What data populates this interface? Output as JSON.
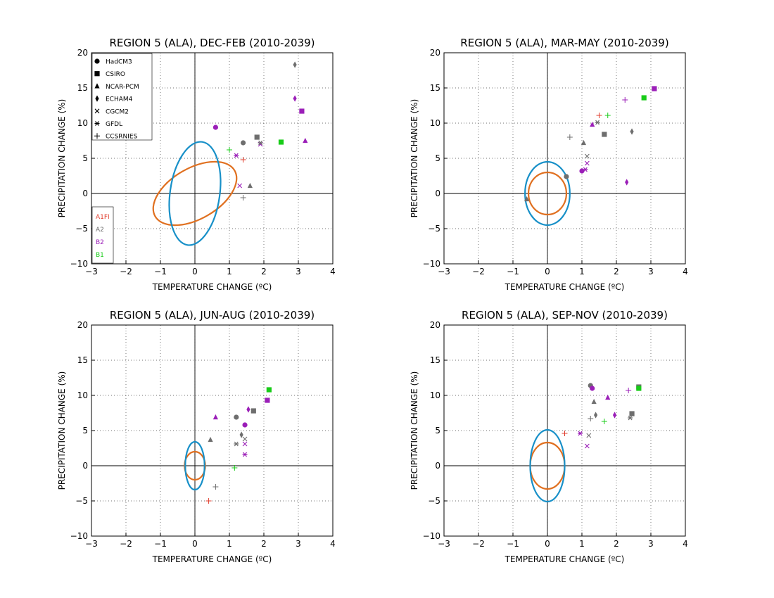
{
  "colors": {
    "A1FI": "#e03c2c",
    "A2": "#6e6e6e",
    "B2": "#9b1fb8",
    "B1": "#18cc18",
    "ellipse_inner": "#e07020",
    "ellipse_outer": "#1890c8"
  },
  "legend_models": [
    {
      "label": "HadCM3",
      "icon": "circle-marker"
    },
    {
      "label": "CSIRO",
      "icon": "square-marker"
    },
    {
      "label": "NCAR-PCM",
      "icon": "triangle-marker"
    },
    {
      "label": "ECHAM4",
      "icon": "diamond-marker"
    },
    {
      "label": "CGCM2",
      "icon": "x-marker"
    },
    {
      "label": "GFDL",
      "icon": "asterisk-marker"
    },
    {
      "label": "CCSRNIES",
      "icon": "plus-marker"
    }
  ],
  "legend_scenarios": [
    "A1FI",
    "A2",
    "B2",
    "B1"
  ],
  "chart_data": [
    {
      "type": "scatter",
      "title": "REGION 5 (ALA), DEC-FEB (2010-2039)",
      "xlabel": "TEMPERATURE CHANGE (ºC)",
      "ylabel": "PRECIPITATION CHANGE (%)",
      "xlim": [
        -3,
        4
      ],
      "ylim": [
        -10,
        20
      ],
      "xticks": [
        "−3",
        "−2",
        "−1",
        "0",
        "1",
        "2",
        "3",
        "4"
      ],
      "yticks": [
        "−10",
        "−5",
        "0",
        "5",
        "10",
        "15",
        "20"
      ],
      "grid": true,
      "legend": "top-left",
      "ellipses": [
        {
          "name": "inner",
          "cx": 0.0,
          "cy": 0.0,
          "rx": 1.0,
          "ry": 3.6
        },
        {
          "name": "outer",
          "cx": 0.0,
          "cy": 0.0,
          "rx": 0.9,
          "ry": 7.3,
          "tilt": true
        }
      ],
      "points": [
        {
          "model": "HadCM3",
          "scenario": "B2",
          "x": 0.6,
          "y": 9.4
        },
        {
          "model": "HadCM3",
          "scenario": "A2",
          "x": 1.4,
          "y": 7.2
        },
        {
          "model": "CSIRO",
          "scenario": "A2",
          "x": 1.8,
          "y": 8.0
        },
        {
          "model": "CSIRO",
          "scenario": "B1",
          "x": 2.5,
          "y": 7.3
        },
        {
          "model": "CSIRO",
          "scenario": "B2",
          "x": 3.1,
          "y": 11.7
        },
        {
          "model": "NCAR-PCM",
          "scenario": "B2",
          "x": 3.2,
          "y": 7.5
        },
        {
          "model": "NCAR-PCM",
          "scenario": "A2",
          "x": 1.6,
          "y": 1.1
        },
        {
          "model": "ECHAM4",
          "scenario": "A2",
          "x": 2.9,
          "y": 18.3
        },
        {
          "model": "ECHAM4",
          "scenario": "B2",
          "x": 2.9,
          "y": 13.5
        },
        {
          "model": "CGCM2",
          "scenario": "B2",
          "x": 1.3,
          "y": 1.1
        },
        {
          "model": "CGCM2",
          "scenario": "B2",
          "x": 1.9,
          "y": 7.0
        },
        {
          "model": "GFDL",
          "scenario": "B2",
          "x": 1.2,
          "y": 5.4
        },
        {
          "model": "GFDL",
          "scenario": "A2",
          "x": 1.9,
          "y": 7.2
        },
        {
          "model": "CCSRNIES",
          "scenario": "B1",
          "x": 1.0,
          "y": 6.2
        },
        {
          "model": "CCSRNIES",
          "scenario": "A1FI",
          "x": 1.4,
          "y": 4.8
        },
        {
          "model": "CCSRNIES",
          "scenario": "A2",
          "x": 1.4,
          "y": -0.6
        }
      ]
    },
    {
      "type": "scatter",
      "title": "REGION 5 (ALA), MAR-MAY (2010-2039)",
      "xlabel": "TEMPERATURE CHANGE (ºC)",
      "ylabel": "PRECIPITATION CHANGE (%)",
      "xlim": [
        -3,
        4
      ],
      "ylim": [
        -10,
        20
      ],
      "xticks": [
        "−3",
        "−2",
        "−1",
        "0",
        "1",
        "2",
        "3",
        "4"
      ],
      "yticks": [
        "−10",
        "−5",
        "0",
        "5",
        "10",
        "15",
        "20"
      ],
      "grid": true,
      "ellipses": [
        {
          "name": "inner",
          "cx": 0.0,
          "cy": 0.0,
          "rx": 0.55,
          "ry": 3.0
        },
        {
          "name": "outer",
          "cx": 0.0,
          "cy": 0.0,
          "rx": 0.65,
          "ry": 4.5
        }
      ],
      "points": [
        {
          "model": "HadCM3",
          "scenario": "A2",
          "x": 0.55,
          "y": 2.4
        },
        {
          "model": "HadCM3",
          "scenario": "B2",
          "x": 1.0,
          "y": 3.2
        },
        {
          "model": "CSIRO",
          "scenario": "B2",
          "x": 3.1,
          "y": 14.9
        },
        {
          "model": "CSIRO",
          "scenario": "B1",
          "x": 2.8,
          "y": 13.6
        },
        {
          "model": "CSIRO",
          "scenario": "A2",
          "x": 1.65,
          "y": 8.4
        },
        {
          "model": "NCAR-PCM",
          "scenario": "B2",
          "x": 1.3,
          "y": 9.8
        },
        {
          "model": "NCAR-PCM",
          "scenario": "A2",
          "x": 1.05,
          "y": 7.2
        },
        {
          "model": "NCAR-PCM",
          "scenario": "A2",
          "x": -0.6,
          "y": -0.8
        },
        {
          "model": "ECHAM4",
          "scenario": "A2",
          "x": 2.45,
          "y": 8.8
        },
        {
          "model": "ECHAM4",
          "scenario": "B2",
          "x": 2.3,
          "y": 1.6
        },
        {
          "model": "CGCM2",
          "scenario": "A2",
          "x": 1.15,
          "y": 5.3
        },
        {
          "model": "CGCM2",
          "scenario": "B2",
          "x": 1.15,
          "y": 4.3
        },
        {
          "model": "GFDL",
          "scenario": "B2",
          "x": 1.1,
          "y": 3.4
        },
        {
          "model": "GFDL",
          "scenario": "A2",
          "x": 1.45,
          "y": 10.1
        },
        {
          "model": "CCSRNIES",
          "scenario": "A1FI",
          "x": 1.5,
          "y": 11.1
        },
        {
          "model": "CCSRNIES",
          "scenario": "B1",
          "x": 1.75,
          "y": 11.1
        },
        {
          "model": "CCSRNIES",
          "scenario": "B2",
          "x": 2.25,
          "y": 13.3
        },
        {
          "model": "CCSRNIES",
          "scenario": "A2",
          "x": 0.65,
          "y": 8.0
        }
      ]
    },
    {
      "type": "scatter",
      "title": "REGION 5 (ALA), JUN-AUG (2010-2039)",
      "xlabel": "TEMPERATURE CHANGE (ºC)",
      "ylabel": "PRECIPITATION CHANGE (%)",
      "xlim": [
        -3,
        4
      ],
      "ylim": [
        -10,
        20
      ],
      "xticks": [
        "−3",
        "−2",
        "−1",
        "0",
        "1",
        "2",
        "3",
        "4"
      ],
      "yticks": [
        "−10",
        "−5",
        "0",
        "5",
        "10",
        "15",
        "20"
      ],
      "grid": true,
      "ellipses": [
        {
          "name": "inner",
          "cx": 0.0,
          "cy": 0.0,
          "rx": 0.3,
          "ry": 2.0
        },
        {
          "name": "outer",
          "cx": 0.0,
          "cy": 0.0,
          "rx": 0.28,
          "ry": 3.4
        }
      ],
      "points": [
        {
          "model": "HadCM3",
          "scenario": "A2",
          "x": 1.2,
          "y": 6.9
        },
        {
          "model": "HadCM3",
          "scenario": "B2",
          "x": 1.45,
          "y": 5.8
        },
        {
          "model": "CSIRO",
          "scenario": "B1",
          "x": 2.15,
          "y": 10.8
        },
        {
          "model": "CSIRO",
          "scenario": "B2",
          "x": 2.1,
          "y": 9.3
        },
        {
          "model": "CSIRO",
          "scenario": "A2",
          "x": 1.7,
          "y": 7.8
        },
        {
          "model": "NCAR-PCM",
          "scenario": "B2",
          "x": 0.6,
          "y": 6.9
        },
        {
          "model": "NCAR-PCM",
          "scenario": "A2",
          "x": 0.45,
          "y": 3.7
        },
        {
          "model": "ECHAM4",
          "scenario": "B2",
          "x": 1.55,
          "y": 8.0
        },
        {
          "model": "ECHAM4",
          "scenario": "A2",
          "x": 1.35,
          "y": 4.4
        },
        {
          "model": "CGCM2",
          "scenario": "A2",
          "x": 1.45,
          "y": 3.8
        },
        {
          "model": "CGCM2",
          "scenario": "B2",
          "x": 1.45,
          "y": 3.1
        },
        {
          "model": "GFDL",
          "scenario": "A2",
          "x": 1.2,
          "y": 3.1
        },
        {
          "model": "GFDL",
          "scenario": "B2",
          "x": 1.45,
          "y": 1.6
        },
        {
          "model": "CCSRNIES",
          "scenario": "B1",
          "x": 1.15,
          "y": -0.3
        },
        {
          "model": "CCSRNIES",
          "scenario": "A2",
          "x": 0.6,
          "y": -3.0
        },
        {
          "model": "CCSRNIES",
          "scenario": "A1FI",
          "x": 0.4,
          "y": -5.0
        }
      ]
    },
    {
      "type": "scatter",
      "title": "REGION 5 (ALA), SEP-NOV (2010-2039)",
      "xlabel": "TEMPERATURE CHANGE (ºC)",
      "ylabel": "PRECIPITATION CHANGE (%)",
      "xlim": [
        -3,
        4
      ],
      "ylim": [
        -10,
        20
      ],
      "xticks": [
        "−3",
        "−2",
        "−1",
        "0",
        "1",
        "2",
        "3",
        "4"
      ],
      "yticks": [
        "−10",
        "−5",
        "0",
        "5",
        "10",
        "15",
        "20"
      ],
      "grid": true,
      "ellipses": [
        {
          "name": "inner",
          "cx": 0.0,
          "cy": 0.0,
          "rx": 0.5,
          "ry": 3.3
        },
        {
          "name": "outer",
          "cx": 0.0,
          "cy": 0.0,
          "rx": 0.5,
          "ry": 5.1
        }
      ],
      "points": [
        {
          "model": "HadCM3",
          "scenario": "A2",
          "x": 1.25,
          "y": 11.4
        },
        {
          "model": "HadCM3",
          "scenario": "B2",
          "x": 1.3,
          "y": 11.0
        },
        {
          "model": "CSIRO",
          "scenario": "A2",
          "x": 2.65,
          "y": 11.2
        },
        {
          "model": "CSIRO",
          "scenario": "B1",
          "x": 2.65,
          "y": 11.0
        },
        {
          "model": "CSIRO",
          "scenario": "A2",
          "x": 2.45,
          "y": 7.4
        },
        {
          "model": "NCAR-PCM",
          "scenario": "A2",
          "x": 1.35,
          "y": 9.1
        },
        {
          "model": "NCAR-PCM",
          "scenario": "B2",
          "x": 1.75,
          "y": 9.7
        },
        {
          "model": "ECHAM4",
          "scenario": "A2",
          "x": 1.4,
          "y": 7.2
        },
        {
          "model": "ECHAM4",
          "scenario": "B2",
          "x": 1.95,
          "y": 7.2
        },
        {
          "model": "CGCM2",
          "scenario": "B2",
          "x": 1.15,
          "y": 2.8
        },
        {
          "model": "CGCM2",
          "scenario": "A2",
          "x": 1.2,
          "y": 4.3
        },
        {
          "model": "GFDL",
          "scenario": "B2",
          "x": 0.95,
          "y": 4.6
        },
        {
          "model": "GFDL",
          "scenario": "A2",
          "x": 2.4,
          "y": 6.8
        },
        {
          "model": "CCSRNIES",
          "scenario": "A1FI",
          "x": 0.5,
          "y": 4.6
        },
        {
          "model": "CCSRNIES",
          "scenario": "A2",
          "x": 1.25,
          "y": 6.7
        },
        {
          "model": "CCSRNIES",
          "scenario": "B1",
          "x": 1.65,
          "y": 6.3
        },
        {
          "model": "CCSRNIES",
          "scenario": "B2",
          "x": 2.35,
          "y": 10.7
        }
      ]
    }
  ]
}
